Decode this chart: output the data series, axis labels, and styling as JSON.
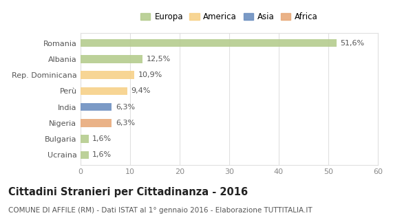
{
  "categories": [
    "Romania",
    "Albania",
    "Rep. Dominicana",
    "Perù",
    "India",
    "Nigeria",
    "Bulgaria",
    "Ucraina"
  ],
  "values": [
    51.6,
    12.5,
    10.9,
    9.4,
    6.3,
    6.3,
    1.6,
    1.6
  ],
  "labels": [
    "51,6%",
    "12,5%",
    "10,9%",
    "9,4%",
    "6,3%",
    "6,3%",
    "1,6%",
    "1,6%"
  ],
  "colors": [
    "#b5cc8e",
    "#b5cc8e",
    "#f7d188",
    "#f7d188",
    "#6d8fc0",
    "#e8aa7a",
    "#b5cc8e",
    "#b5cc8e"
  ],
  "legend_labels": [
    "Europa",
    "America",
    "Asia",
    "Africa"
  ],
  "legend_colors": [
    "#b5cc8e",
    "#f7d188",
    "#6d8fc0",
    "#e8aa7a"
  ],
  "xlim": [
    0,
    60
  ],
  "xticks": [
    0,
    10,
    20,
    30,
    40,
    50,
    60
  ],
  "title": "Cittadini Stranieri per Cittadinanza - 2016",
  "subtitle": "COMUNE DI AFFILE (RM) - Dati ISTAT al 1° gennaio 2016 - Elaborazione TUTTITALIA.IT",
  "background_color": "#ffffff",
  "plot_background": "#ffffff",
  "bar_height": 0.5,
  "label_fontsize": 8,
  "ytick_fontsize": 8,
  "xtick_fontsize": 8,
  "title_fontsize": 10.5,
  "subtitle_fontsize": 7.5,
  "legend_fontsize": 8.5
}
